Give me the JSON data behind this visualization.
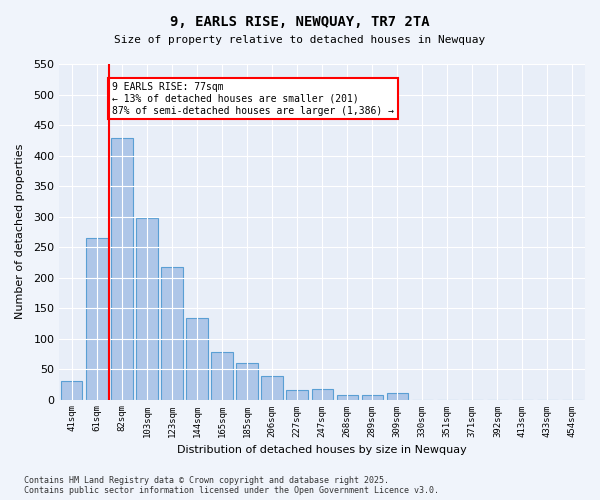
{
  "title1": "9, EARLS RISE, NEWQUAY, TR7 2TA",
  "title2": "Size of property relative to detached houses in Newquay",
  "xlabel": "Distribution of detached houses by size in Newquay",
  "ylabel": "Number of detached properties",
  "bar_labels": [
    "41sqm",
    "61sqm",
    "82sqm",
    "103sqm",
    "123sqm",
    "144sqm",
    "165sqm",
    "185sqm",
    "206sqm",
    "227sqm",
    "247sqm",
    "268sqm",
    "289sqm",
    "309sqm",
    "330sqm",
    "351sqm",
    "371sqm",
    "392sqm",
    "413sqm",
    "433sqm",
    "454sqm"
  ],
  "bar_values": [
    31,
    265,
    428,
    298,
    218,
    133,
    78,
    60,
    38,
    15,
    17,
    8,
    7,
    10,
    0,
    0,
    0,
    0,
    0,
    0,
    0
  ],
  "bar_color": "#aec6e8",
  "bar_edge_color": "#5a9fd4",
  "vline_x": 1.5,
  "vline_color": "red",
  "annotation_text": "9 EARLS RISE: 77sqm\n← 13% of detached houses are smaller (201)\n87% of semi-detached houses are larger (1,386) →",
  "annotation_box_color": "red",
  "ylim": [
    0,
    550
  ],
  "yticks": [
    0,
    50,
    100,
    150,
    200,
    250,
    300,
    350,
    400,
    450,
    500,
    550
  ],
  "bg_color": "#f0f4fb",
  "plot_bg_color": "#e8eef8",
  "grid_color": "white",
  "footnote": "Contains HM Land Registry data © Crown copyright and database right 2025.\nContains public sector information licensed under the Open Government Licence v3.0."
}
